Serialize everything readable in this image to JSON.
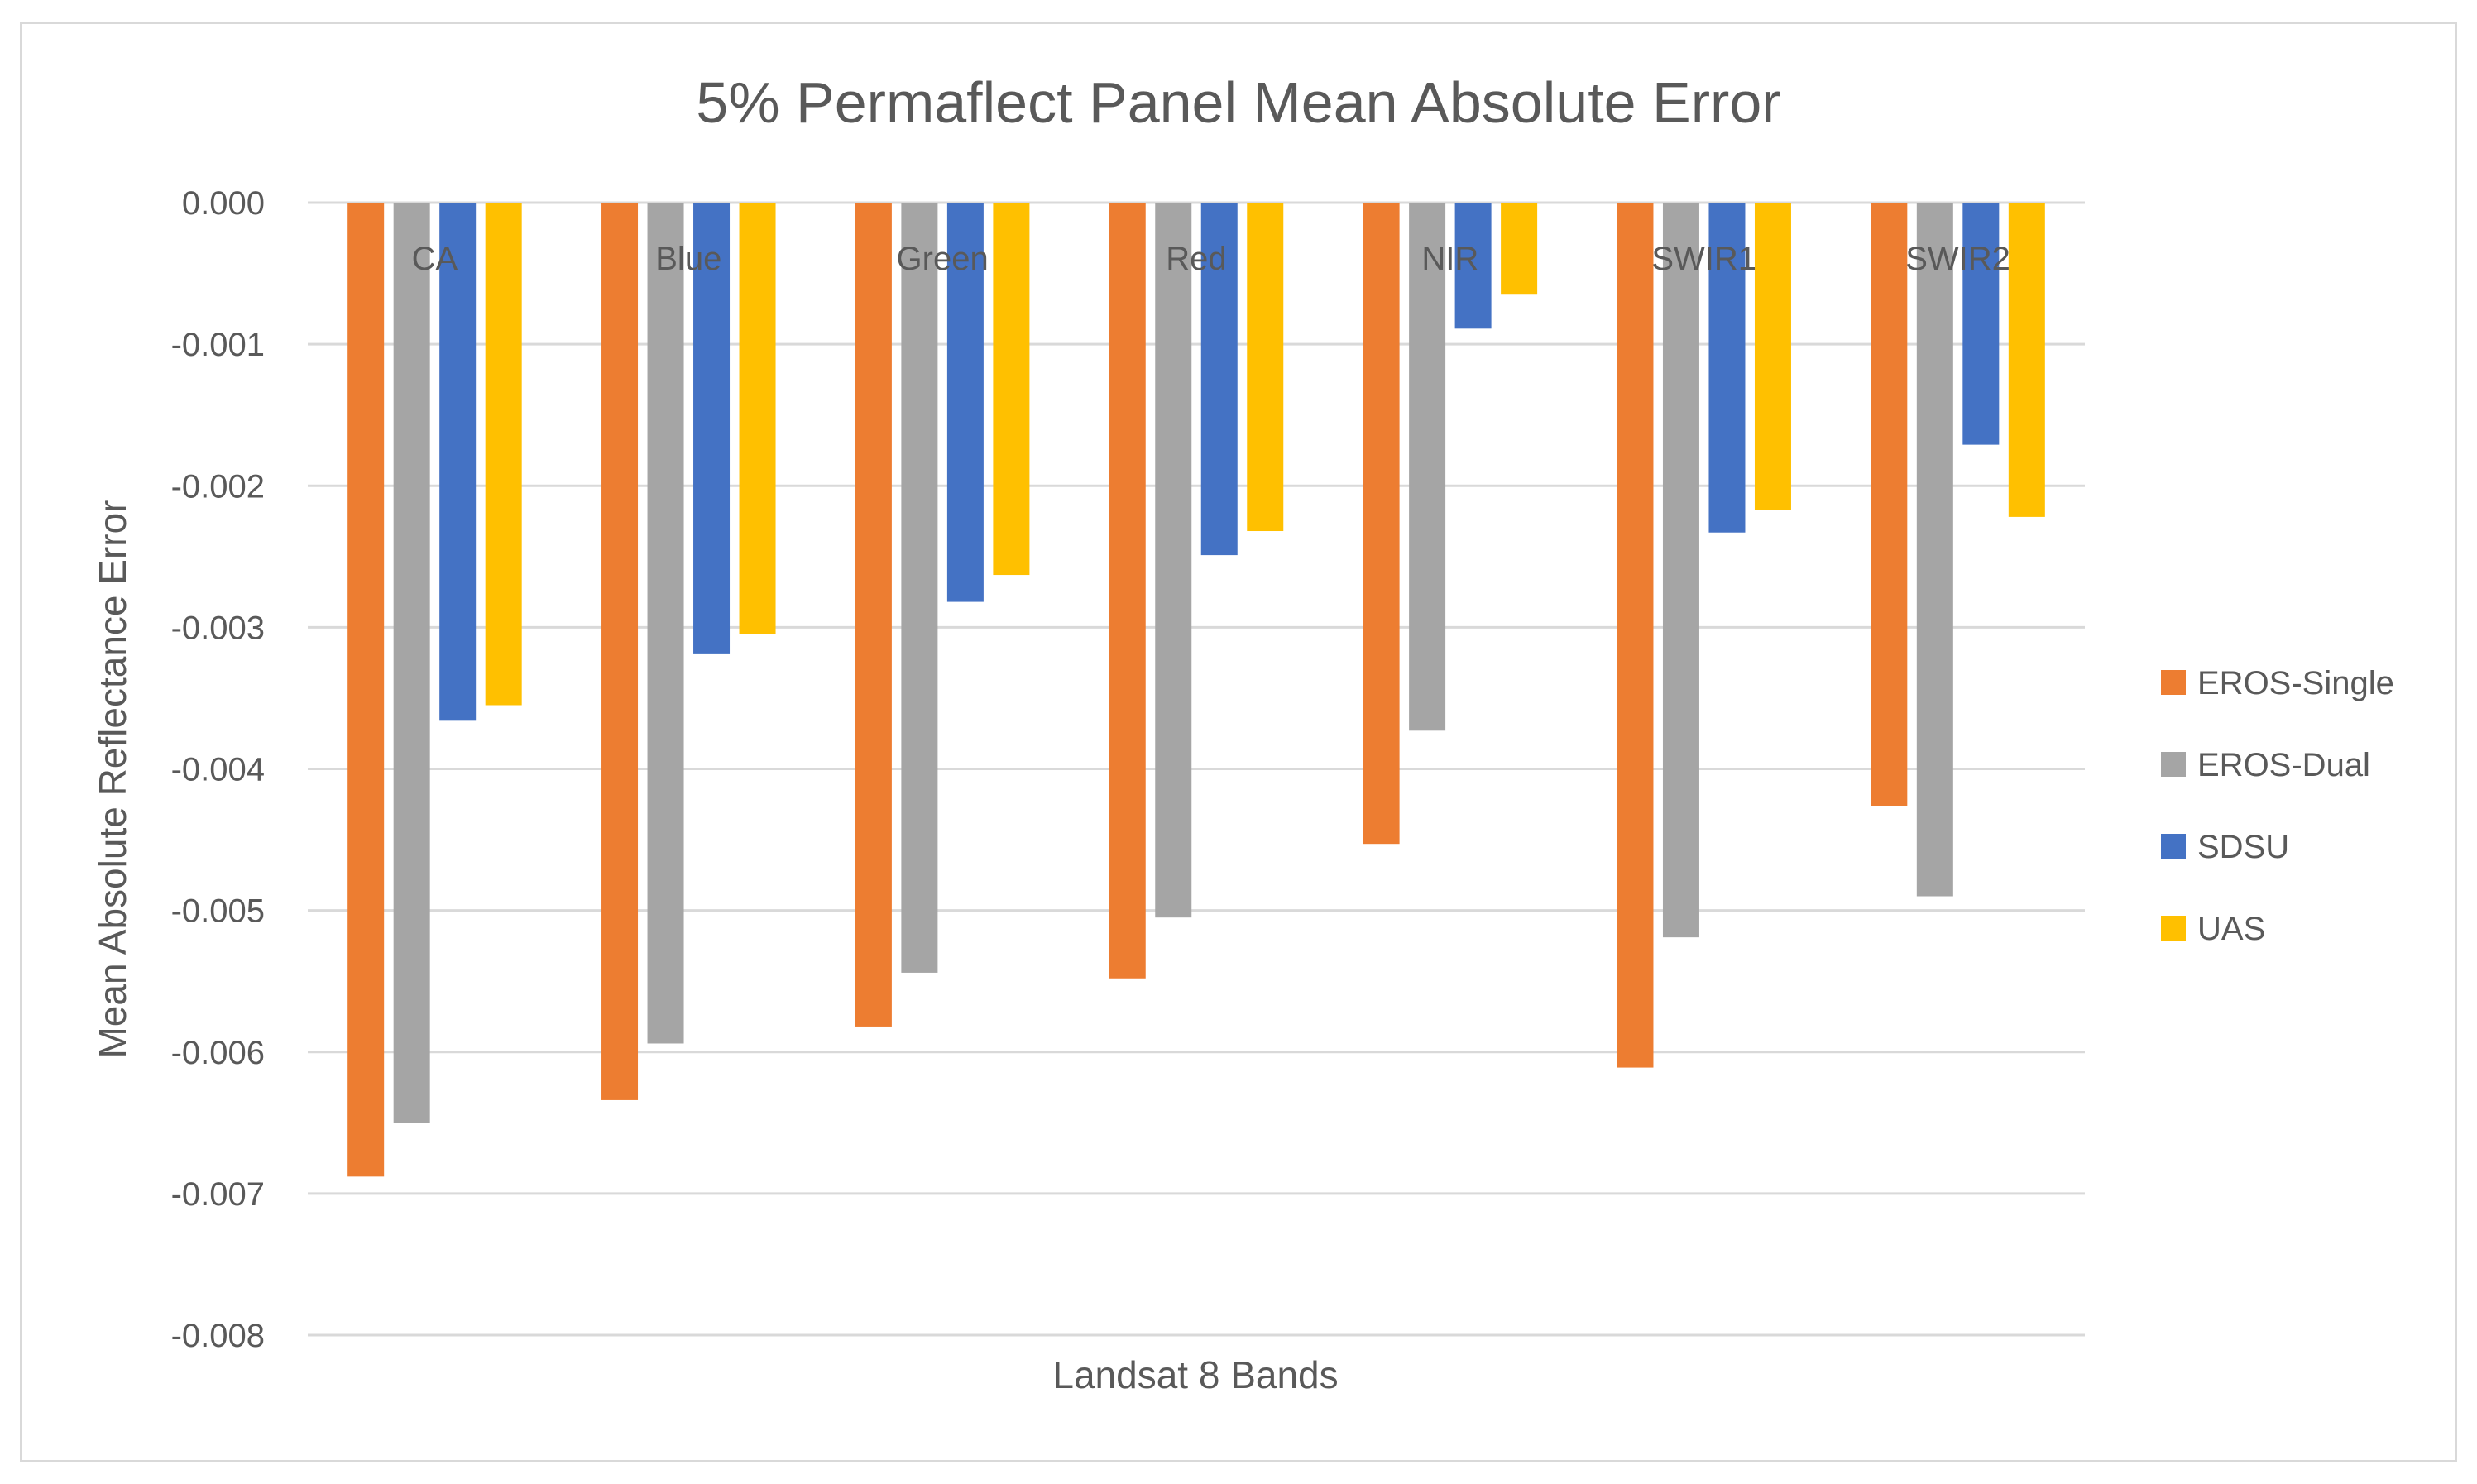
{
  "chart_data": {
    "type": "bar",
    "title": "5% Permaflect Panel Mean Absolute Error",
    "xlabel": "Landsat 8 Bands",
    "ylabel": "Mean Absolute Reflectance Error",
    "categories": [
      "CA",
      "Blue",
      "Green",
      "Red",
      "NIR",
      "SWIR1",
      "SWIR2"
    ],
    "ylim": [
      -0.008,
      0.0
    ],
    "yticks": [
      "0.000",
      "-0.001",
      "-0.002",
      "-0.003",
      "-0.004",
      "-0.005",
      "-0.006",
      "-0.007",
      "-0.008"
    ],
    "grid": true,
    "legend_position": "right",
    "series": [
      {
        "name": "EROS-Single",
        "color": "#ED7D31",
        "values": [
          -0.00688,
          -0.00634,
          -0.00582,
          -0.00548,
          -0.00453,
          -0.00611,
          -0.00426
        ]
      },
      {
        "name": "EROS-Dual",
        "color": "#A5A5A5",
        "values": [
          -0.0065,
          -0.00594,
          -0.00544,
          -0.00505,
          -0.00373,
          -0.00519,
          -0.0049
        ]
      },
      {
        "name": "SDSU",
        "color": "#4472C4",
        "values": [
          -0.00366,
          -0.00319,
          -0.00282,
          -0.00249,
          -0.00089,
          -0.00233,
          -0.00171
        ]
      },
      {
        "name": "UAS",
        "color": "#FFC000",
        "values": [
          -0.00355,
          -0.00305,
          -0.00263,
          -0.00232,
          -0.00065,
          -0.00217,
          -0.00222
        ]
      }
    ]
  }
}
